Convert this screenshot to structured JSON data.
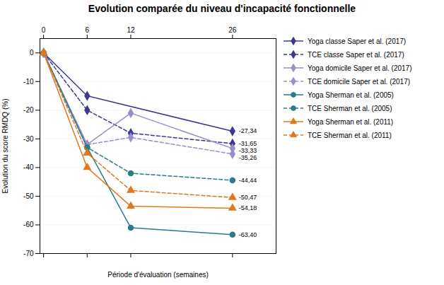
{
  "chart_data": {
    "type": "line",
    "title": "Evolution comparée du niveau d'incapacité fonctionnelle",
    "xlabel": "Période d'évaluation (semaines)",
    "ylabel": "Evolution du score RMDQ (%)",
    "xlim": [
      -0.5,
      32
    ],
    "xticks": [
      0,
      6,
      12,
      26
    ],
    "ylim": [
      -70,
      5
    ],
    "yticks": [
      0,
      -10,
      -20,
      -30,
      -40,
      -50,
      -60,
      -70
    ],
    "grid": true,
    "legend": "right",
    "series": [
      {
        "name": "Yoga classe Saper et al. (2017)",
        "color": "#3B3A8F",
        "line_style": "solid",
        "marker": "diamond",
        "x": [
          0,
          6,
          26
        ],
        "values": [
          0,
          -15,
          -27.34
        ]
      },
      {
        "name": "TCE classe Saper et al. (2017)",
        "color": "#3B3A8F",
        "line_style": "dashed",
        "marker": "diamond",
        "x": [
          0,
          6,
          12,
          26
        ],
        "values": [
          0,
          -20,
          -28,
          -31.65
        ]
      },
      {
        "name": "Yoga domicile Saper et al. (2017)",
        "color": "#9B8DC8",
        "line_style": "solid",
        "marker": "diamond",
        "x": [
          0,
          6,
          12,
          26
        ],
        "values": [
          0,
          -32,
          -21,
          -33.33
        ]
      },
      {
        "name": "TCE domicile Saper et al. (2017)",
        "color": "#9B8DC8",
        "line_style": "dashed",
        "marker": "diamond",
        "x": [
          0,
          6,
          12,
          26
        ],
        "values": [
          0,
          -32,
          -29.5,
          -35.26
        ]
      },
      {
        "name": "Yoga Sherman et al. (2005)",
        "color": "#2A7B8B",
        "line_style": "solid",
        "marker": "circle",
        "x": [
          0,
          6,
          12,
          26
        ],
        "values": [
          0,
          -33,
          -61.0,
          -63.4
        ]
      },
      {
        "name": "TCE Sherman et al. (2005)",
        "color": "#2A7B8B",
        "line_style": "dashed",
        "marker": "circle",
        "x": [
          0,
          6,
          12,
          26
        ],
        "values": [
          0,
          -33,
          -42,
          -44.44
        ]
      },
      {
        "name": "Yoga Sherman et al. (2011)",
        "color": "#E07820",
        "line_style": "solid",
        "marker": "triangle",
        "x": [
          0,
          6,
          12,
          26
        ],
        "values": [
          0,
          -40,
          -53.5,
          -54.18
        ]
      },
      {
        "name": "TCE Sherman et al. (2011)",
        "color": "#E07820",
        "line_style": "dashed",
        "marker": "triangle",
        "x": [
          0,
          6,
          12,
          26
        ],
        "values": [
          0,
          -35,
          -48,
          -50.47
        ]
      }
    ],
    "annotations": [
      {
        "text": "-27,34",
        "x": 26,
        "y": -27.34
      },
      {
        "text": "-31,65",
        "x": 26,
        "y": -31.65
      },
      {
        "text": "-33,33",
        "x": 26,
        "y": -33.33
      },
      {
        "text": "-35,26",
        "x": 26,
        "y": -35.26
      },
      {
        "text": "-63,40",
        "x": 26,
        "y": -63.4
      },
      {
        "text": "-44,44",
        "x": 26,
        "y": -44.44
      },
      {
        "text": "-54,18",
        "x": 26,
        "y": -54.18
      },
      {
        "text": "-50,47",
        "x": 26,
        "y": -50.47
      }
    ]
  }
}
